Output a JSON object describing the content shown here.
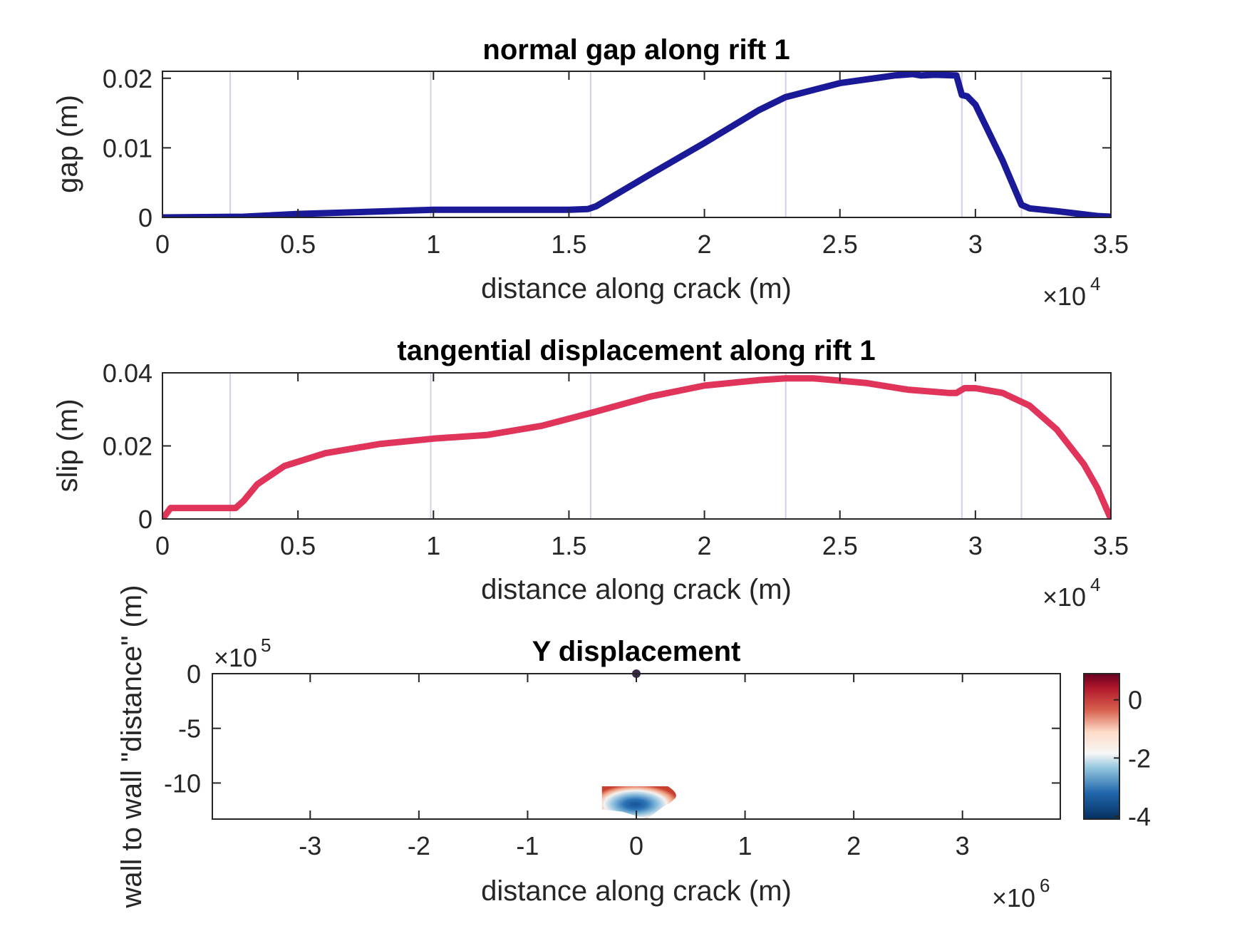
{
  "chart_data": [
    {
      "type": "line",
      "title": "normal gap along rift 1",
      "xlabel": "distance along crack (m)",
      "ylabel": "gap (m)",
      "x_exponent": "4",
      "xlim": [
        0,
        3.5
      ],
      "ylim": [
        0,
        0.021
      ],
      "x_ticks": [
        "0",
        "0.5",
        "1",
        "1.5",
        "2",
        "2.5",
        "3",
        "3.5"
      ],
      "y_ticks": [
        "0",
        "0.01",
        "0.02"
      ],
      "grid": false,
      "vlines": [
        0.25,
        0.99,
        1.58,
        2.3,
        2.95,
        3.17
      ],
      "series": [
        {
          "color": "#1a1a99",
          "x": [
            0,
            0.3,
            0.5,
            1.0,
            1.5,
            1.57,
            1.6,
            1.8,
            2.0,
            2.2,
            2.3,
            2.32,
            2.5,
            2.7,
            2.77,
            2.8,
            2.85,
            2.93,
            2.95,
            2.97,
            3.0,
            3.1,
            3.17,
            3.2,
            3.3,
            3.45,
            3.5
          ],
          "y": [
            0,
            0.0001,
            0.0005,
            0.0011,
            0.0011,
            0.0012,
            0.0016,
            0.0062,
            0.0107,
            0.0154,
            0.0173,
            0.0175,
            0.0193,
            0.0204,
            0.0206,
            0.0204,
            0.0205,
            0.0204,
            0.0176,
            0.0174,
            0.0162,
            0.0082,
            0.0018,
            0.0013,
            0.0009,
            0.0002,
            0.0001
          ]
        }
      ]
    },
    {
      "type": "line",
      "title": "tangential displacement along rift 1",
      "xlabel": "distance along crack (m)",
      "ylabel": "slip (m)",
      "x_exponent": "4",
      "xlim": [
        0,
        3.5
      ],
      "ylim": [
        0,
        0.04
      ],
      "x_ticks": [
        "0",
        "0.5",
        "1",
        "1.5",
        "2",
        "2.5",
        "3",
        "3.5"
      ],
      "y_ticks": [
        "0",
        "0.02",
        "0.04"
      ],
      "grid": false,
      "vlines": [
        0.25,
        0.99,
        1.58,
        2.3,
        2.95,
        3.17
      ],
      "series": [
        {
          "color": "#e0345a",
          "x": [
            0,
            0.03,
            0.27,
            0.3,
            0.35,
            0.45,
            0.6,
            0.8,
            1.0,
            1.2,
            1.4,
            1.58,
            1.8,
            2.0,
            2.2,
            2.3,
            2.4,
            2.6,
            2.75,
            2.8,
            2.9,
            2.93,
            2.96,
            3.0,
            3.1,
            3.2,
            3.3,
            3.4,
            3.45,
            3.5
          ],
          "y": [
            0,
            0.003,
            0.003,
            0.005,
            0.0095,
            0.0145,
            0.018,
            0.0205,
            0.022,
            0.023,
            0.0255,
            0.029,
            0.0335,
            0.0365,
            0.038,
            0.0385,
            0.0385,
            0.0372,
            0.0354,
            0.0351,
            0.0345,
            0.0345,
            0.0358,
            0.0358,
            0.0345,
            0.031,
            0.0245,
            0.015,
            0.0085,
            0.0
          ]
        }
      ]
    },
    {
      "type": "heatmap",
      "title": "Y displacement",
      "xlabel": "distance along crack (m)",
      "ylabel": "wall to wall \"distance\" (m)",
      "x_exponent": "6",
      "y_exponent": "5",
      "xlim": [
        -3.9,
        3.9
      ],
      "ylim": [
        -13.3,
        0
      ],
      "x_ticks": [
        "-3",
        "-2",
        "-1",
        "0",
        "1",
        "2",
        "3"
      ],
      "y_ticks": [
        "0",
        "-5",
        "-10"
      ],
      "colorbar": {
        "min": -4.1,
        "max": 0.9,
        "ticks": [
          "0",
          "-2",
          "-4"
        ],
        "colormap": "diverging red-white-blue"
      },
      "marker_point": [
        0,
        0
      ],
      "patch_extent": {
        "x": [
          -0.33,
          0.36
        ],
        "y": [
          -13.3,
          -10.3
        ]
      }
    }
  ]
}
